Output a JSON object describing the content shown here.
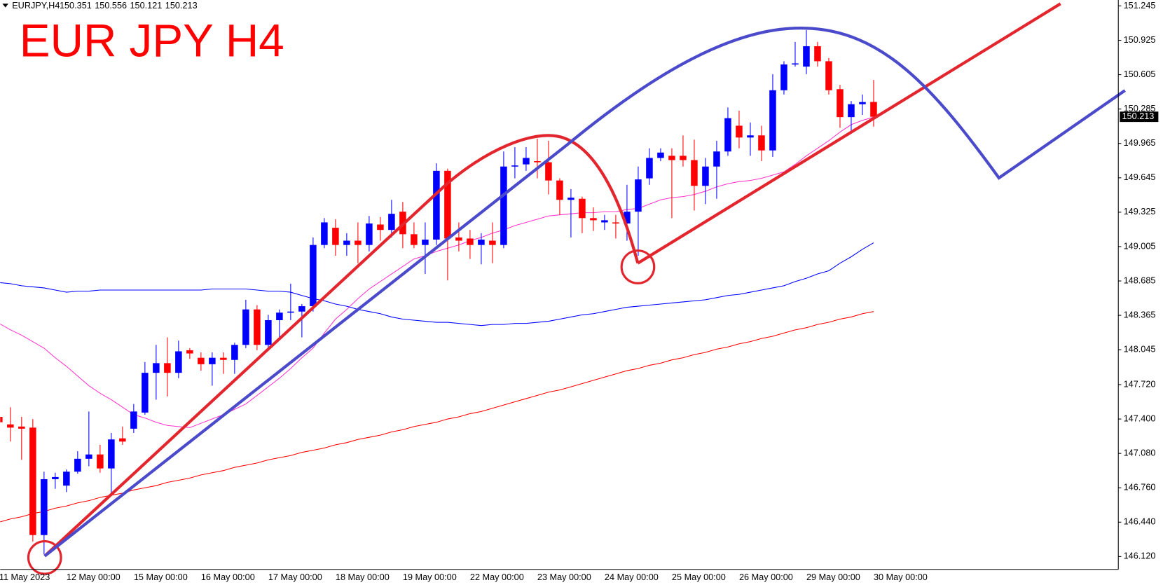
{
  "chart_data": {
    "type": "candlestick",
    "title": "EUR JPY H4",
    "symbol": "EURJPY,H4",
    "categories": [
      "11 May 2023",
      null,
      null,
      null,
      null,
      null,
      "12 May 00:00",
      null,
      null,
      null,
      null,
      null,
      "15 May 00:00",
      null,
      null,
      null,
      null,
      null,
      "16 May 00:00",
      null,
      null,
      null,
      null,
      null,
      "17 May 00:00",
      null,
      null,
      null,
      null,
      null,
      "18 May 00:00",
      null,
      null,
      null,
      null,
      null,
      "19 May 00:00",
      null,
      null,
      null,
      null,
      null,
      "22 May 00:00",
      null,
      null,
      null,
      null,
      null,
      "23 May 00:00",
      null,
      null,
      null,
      null,
      null,
      "24 May 00:00",
      null,
      null,
      null,
      null,
      null,
      "25 May 00:00",
      null,
      null,
      null,
      null,
      null,
      "26 May 00:00",
      null,
      null,
      null,
      null,
      null,
      "29 May 00:00",
      null,
      null,
      null,
      null,
      null,
      "30 May 00:00"
    ],
    "candles": {
      "open": [
        147.42,
        147.35,
        147.33,
        147.32,
        146.32,
        146.84,
        146.78,
        146.91,
        147.03,
        147.07,
        146.94,
        147.22,
        147.31,
        147.46,
        147.83,
        147.92,
        147.83,
        148.04,
        147.97,
        147.91,
        147.97,
        147.95,
        148.09,
        148.42,
        148.09,
        148.32,
        148.39,
        148.4,
        148.45,
        149.02,
        149.18,
        149.02,
        149.06,
        149.02,
        149.21,
        149.16,
        149.33,
        149.12,
        149.02,
        149.07,
        149.71,
        149.09,
        149.08,
        149.02,
        149.06,
        149.02,
        149.75,
        149.77,
        149.8,
        149.79,
        149.62,
        149.44,
        149.45,
        149.27,
        149.23,
        149.23,
        149.22,
        149.33,
        149.64,
        149.83,
        149.85,
        149.85,
        149.81,
        149.57,
        149.75,
        149.89,
        150.13,
        150.02,
        150.04,
        149.9,
        150.46,
        150.7,
        150.68,
        150.87,
        150.73,
        150.47,
        150.21,
        150.33,
        150.351
      ],
      "high": [
        147.47,
        147.51,
        147.42,
        147.4,
        146.91,
        146.9,
        146.93,
        147.1,
        147.47,
        147.16,
        147.27,
        147.33,
        147.54,
        147.93,
        148.09,
        148.16,
        148.13,
        148.06,
        148.02,
        148.02,
        148.02,
        148.11,
        148.51,
        148.46,
        148.37,
        148.42,
        148.66,
        148.47,
        149.09,
        149.27,
        149.26,
        149.13,
        149.23,
        149.29,
        149.28,
        149.44,
        149.42,
        149.23,
        149.23,
        149.78,
        149.73,
        149.23,
        149.16,
        149.13,
        149.23,
        149.89,
        149.93,
        149.93,
        150.01,
        149.99,
        149.64,
        149.54,
        149.47,
        149.37,
        149.3,
        149.3,
        149.58,
        149.75,
        149.92,
        149.92,
        149.92,
        150.04,
        150.0,
        149.83,
        149.99,
        150.3,
        150.27,
        150.16,
        150.13,
        150.61,
        150.73,
        150.91,
        151.02,
        150.91,
        150.76,
        150.51,
        150.36,
        150.42,
        150.556
      ],
      "low": [
        147.35,
        147.19,
        147.02,
        146.26,
        146.14,
        146.75,
        146.72,
        146.89,
        146.96,
        146.9,
        146.71,
        147.16,
        147.27,
        147.44,
        147.58,
        147.61,
        147.78,
        147.96,
        147.85,
        147.71,
        147.82,
        147.82,
        148.06,
        148.04,
        148.06,
        148.16,
        148.32,
        148.16,
        148.4,
        148.99,
        148.92,
        148.92,
        148.85,
        148.96,
        149.06,
        149.09,
        148.99,
        148.99,
        148.75,
        149.02,
        148.69,
        148.96,
        148.89,
        148.84,
        148.85,
        148.99,
        149.64,
        149.71,
        149.64,
        149.49,
        149.3,
        149.09,
        149.13,
        149.15,
        149.16,
        149.08,
        149.06,
        148.92,
        149.58,
        149.8,
        149.27,
        149.75,
        149.34,
        149.4,
        149.45,
        149.85,
        149.92,
        149.85,
        149.8,
        149.84,
        150.42,
        150.68,
        150.61,
        150.68,
        150.42,
        150.11,
        150.06,
        150.23,
        150.121
      ],
      "close": [
        147.37,
        147.32,
        147.31,
        146.32,
        146.84,
        146.86,
        146.91,
        147.03,
        147.07,
        146.94,
        147.21,
        147.19,
        147.47,
        147.83,
        147.92,
        147.83,
        148.03,
        148.01,
        147.91,
        147.97,
        147.95,
        148.09,
        148.42,
        148.09,
        148.32,
        148.39,
        148.4,
        148.45,
        149.02,
        149.23,
        149.02,
        149.06,
        149.02,
        149.22,
        149.16,
        149.31,
        149.12,
        149.02,
        149.07,
        149.71,
        149.08,
        149.06,
        149.02,
        149.07,
        149.02,
        149.75,
        149.76,
        149.83,
        149.79,
        149.62,
        149.44,
        149.46,
        149.27,
        149.25,
        149.25,
        149.22,
        149.33,
        149.63,
        149.83,
        149.88,
        149.81,
        149.81,
        149.57,
        149.75,
        149.89,
        150.2,
        150.02,
        150.04,
        149.9,
        150.46,
        150.7,
        150.71,
        150.87,
        150.73,
        150.46,
        150.21,
        150.33,
        150.35,
        150.213
      ]
    },
    "up_color": "#0000ff",
    "down_color": "#ff0000",
    "series": [
      {
        "color": "#ff33cc",
        "values": [
          148.29,
          148.23,
          148.18,
          148.12,
          148.06,
          147.97,
          147.89,
          147.8,
          147.71,
          147.64,
          147.58,
          147.51,
          147.44,
          147.41,
          147.37,
          147.34,
          147.33,
          147.32,
          147.36,
          147.4,
          147.44,
          147.49,
          147.54,
          147.62,
          147.7,
          147.78,
          147.87,
          147.97,
          148.06,
          148.2,
          148.33,
          148.42,
          148.52,
          148.61,
          148.68,
          148.75,
          148.82,
          148.89,
          148.92,
          148.96,
          148.99,
          149.02,
          149.06,
          149.09,
          149.13,
          149.16,
          149.2,
          149.23,
          149.26,
          149.29,
          149.3,
          149.31,
          149.32,
          149.32,
          149.33,
          149.33,
          149.35,
          149.36,
          149.4,
          149.44,
          149.46,
          149.47,
          149.49,
          149.52,
          149.56,
          149.59,
          149.61,
          149.62,
          149.64,
          149.67,
          149.7,
          149.77,
          149.85,
          149.92,
          149.99,
          150.07,
          150.14,
          150.18,
          150.21
        ]
      },
      {
        "color": "#0000ff",
        "values": [
          148.67,
          148.66,
          148.64,
          148.63,
          148.62,
          148.6,
          148.58,
          148.59,
          148.59,
          148.6,
          148.6,
          148.6,
          148.6,
          148.6,
          148.6,
          148.6,
          148.6,
          148.6,
          148.6,
          148.61,
          148.61,
          148.61,
          148.61,
          148.6,
          148.59,
          148.59,
          148.58,
          148.55,
          148.52,
          148.5,
          148.47,
          148.45,
          148.42,
          148.4,
          148.38,
          148.35,
          148.33,
          148.32,
          148.31,
          148.3,
          148.3,
          148.29,
          148.28,
          148.27,
          148.28,
          148.28,
          148.29,
          148.29,
          148.3,
          148.31,
          148.33,
          148.35,
          148.37,
          148.38,
          148.4,
          148.42,
          148.44,
          148.45,
          148.46,
          148.47,
          148.48,
          148.49,
          148.5,
          148.51,
          148.53,
          148.55,
          148.56,
          148.58,
          148.6,
          148.62,
          148.64,
          148.68,
          148.71,
          148.75,
          148.78,
          148.85,
          148.91,
          148.98,
          149.04
        ]
      },
      {
        "color": "#ff0000",
        "values": [
          146.44,
          146.47,
          146.49,
          146.52,
          146.54,
          146.57,
          146.59,
          146.62,
          146.64,
          146.67,
          146.69,
          146.71,
          146.74,
          146.76,
          146.78,
          146.81,
          146.83,
          146.85,
          146.88,
          146.9,
          146.92,
          146.95,
          146.97,
          146.99,
          147.02,
          147.04,
          147.06,
          147.09,
          147.11,
          147.13,
          147.16,
          147.18,
          147.21,
          147.23,
          147.25,
          147.28,
          147.3,
          147.33,
          147.35,
          147.37,
          147.4,
          147.42,
          147.45,
          147.47,
          147.5,
          147.53,
          147.56,
          147.59,
          147.62,
          147.65,
          147.67,
          147.7,
          147.73,
          147.76,
          147.79,
          147.82,
          147.85,
          147.87,
          147.9,
          147.92,
          147.95,
          147.97,
          148.0,
          148.02,
          148.05,
          148.07,
          148.1,
          148.12,
          148.15,
          148.17,
          148.2,
          148.23,
          148.25,
          148.28,
          148.3,
          148.33,
          148.35,
          148.38,
          148.4
        ]
      }
    ],
    "ylim": [
      146.0,
      151.3
    ],
    "yticks": [
      151.245,
      150.925,
      150.605,
      150.285,
      149.965,
      149.645,
      149.325,
      149.005,
      148.685,
      148.365,
      148.045,
      {
        "value": 147.72,
        "label": "147.720"
      },
      {
        "value": 147.4,
        "label": "147.400"
      },
      {
        "value": 147.08,
        "label": "147.080"
      },
      {
        "value": 146.76,
        "label": "146.760"
      },
      {
        "value": 146.44,
        "label": "146.440"
      },
      {
        "value": 146.12,
        "label": "146.120"
      }
    ],
    "grid": false
  }
}
